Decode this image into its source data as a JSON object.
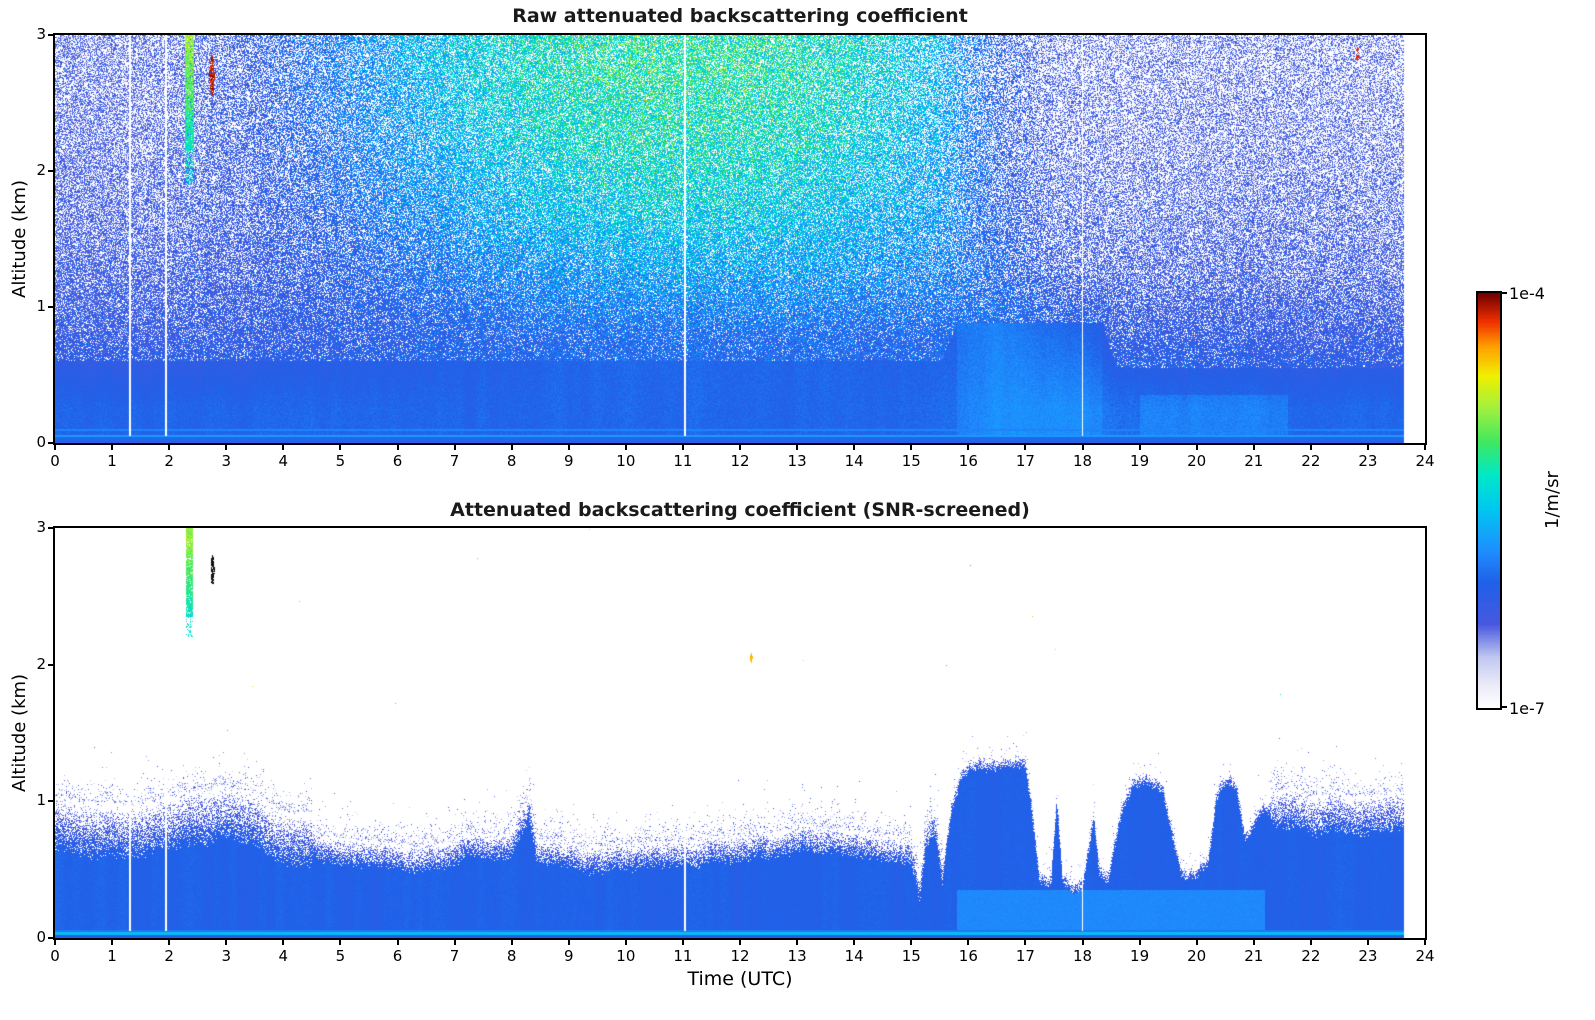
{
  "colorbar": {
    "max_label": "1e-4",
    "min_label": "1e-7",
    "units_label": "1/m/sr",
    "scale": "log",
    "vmin": 1e-07,
    "vmax": 0.0001,
    "stops": [
      {
        "u": 0.0,
        "c": "#ffffff"
      },
      {
        "u": 0.06,
        "c": "#e8e8f8"
      },
      {
        "u": 0.12,
        "c": "#c0c8f0"
      },
      {
        "u": 0.2,
        "c": "#4858e0"
      },
      {
        "u": 0.3,
        "c": "#2060e8"
      },
      {
        "u": 0.38,
        "c": "#1e90ff"
      },
      {
        "u": 0.48,
        "c": "#00c8f0"
      },
      {
        "u": 0.56,
        "c": "#00e8c8"
      },
      {
        "u": 0.64,
        "c": "#40e860"
      },
      {
        "u": 0.72,
        "c": "#a0f040"
      },
      {
        "u": 0.8,
        "c": "#f0f000"
      },
      {
        "u": 0.87,
        "c": "#ffa000"
      },
      {
        "u": 0.93,
        "c": "#f03000"
      },
      {
        "u": 1.0,
        "c": "#700000"
      }
    ]
  },
  "chart_data": [
    {
      "type": "heatmap",
      "title": "Raw attenuated backscattering coefficient",
      "xlabel": "Time (UTC)",
      "ylabel": "Altitude (km)",
      "xlim": [
        0,
        24
      ],
      "ylim": [
        0,
        3
      ],
      "x_ticks": [
        0,
        1,
        2,
        3,
        4,
        5,
        6,
        7,
        8,
        9,
        10,
        11,
        12,
        13,
        14,
        15,
        16,
        17,
        18,
        19,
        20,
        21,
        22,
        23,
        24
      ],
      "y_ticks": [
        0,
        1,
        2,
        3
      ],
      "colorbar_range_labels": [
        "1e-7",
        "1e-4"
      ],
      "data_end_time_utc": 23.63,
      "gap_times_utc": [
        1.31,
        1.95,
        11.04,
        18.0
      ],
      "surface_solid_layer_top_km": 0.6,
      "bright_region": {
        "t_start": 15.8,
        "t_end": 18.35,
        "top_km": 0.88
      },
      "grid_t_centers": [
        0.5,
        1.5,
        2.5,
        3.5,
        4.5,
        5.5,
        6.5,
        7.5,
        8.5,
        9.5,
        10.5,
        11.5,
        12.5,
        13.5,
        14.5,
        15.5,
        16.5,
        17.5,
        18.5,
        19.5,
        20.5,
        21.5,
        22.5,
        23.5
      ],
      "grid_z_centers": [
        0.25,
        0.75,
        1.25,
        1.75,
        2.25,
        2.75
      ],
      "value_grid": [
        [
          0.31,
          0.31,
          0.31,
          0.31,
          0.31,
          0.31,
          0.31,
          0.31,
          0.31,
          0.31,
          0.31,
          0.31,
          0.31,
          0.31,
          0.31,
          0.32,
          0.35,
          0.35,
          0.33,
          0.32,
          0.32,
          0.31,
          0.31,
          0.31
        ],
        [
          0.24,
          0.24,
          0.25,
          0.25,
          0.26,
          0.27,
          0.28,
          0.29,
          0.3,
          0.31,
          0.31,
          0.31,
          0.31,
          0.31,
          0.3,
          0.3,
          0.33,
          0.3,
          0.26,
          0.25,
          0.25,
          0.24,
          0.24,
          0.24
        ],
        [
          0.22,
          0.22,
          0.23,
          0.24,
          0.26,
          0.29,
          0.32,
          0.35,
          0.38,
          0.4,
          0.41,
          0.41,
          0.41,
          0.4,
          0.38,
          0.36,
          0.3,
          0.24,
          0.23,
          0.22,
          0.22,
          0.22,
          0.22,
          0.22
        ],
        [
          0.21,
          0.21,
          0.22,
          0.24,
          0.28,
          0.33,
          0.38,
          0.43,
          0.46,
          0.48,
          0.5,
          0.5,
          0.49,
          0.47,
          0.44,
          0.4,
          0.28,
          0.22,
          0.21,
          0.21,
          0.21,
          0.21,
          0.21,
          0.21
        ],
        [
          0.2,
          0.2,
          0.22,
          0.25,
          0.3,
          0.36,
          0.42,
          0.47,
          0.51,
          0.54,
          0.55,
          0.55,
          0.54,
          0.52,
          0.48,
          0.42,
          0.28,
          0.21,
          0.2,
          0.2,
          0.2,
          0.2,
          0.2,
          0.2
        ],
        [
          0.2,
          0.2,
          0.22,
          0.26,
          0.32,
          0.38,
          0.45,
          0.5,
          0.54,
          0.57,
          0.58,
          0.58,
          0.57,
          0.54,
          0.5,
          0.44,
          0.28,
          0.21,
          0.2,
          0.2,
          0.2,
          0.2,
          0.2,
          0.2
        ]
      ],
      "fill_grid": [
        [
          1.0,
          1.0,
          1.0,
          1.0,
          1.0,
          1.0,
          1.0,
          1.0,
          1.0,
          1.0,
          1.0,
          1.0,
          1.0,
          1.0,
          1.0,
          1.0,
          1.0,
          1.0,
          1.0,
          1.0,
          1.0,
          1.0,
          1.0,
          1.0
        ],
        [
          0.85,
          0.85,
          0.85,
          0.85,
          0.85,
          0.85,
          0.88,
          0.9,
          0.9,
          0.9,
          0.9,
          0.9,
          0.9,
          0.9,
          0.9,
          0.9,
          0.95,
          0.9,
          0.85,
          0.85,
          0.85,
          0.85,
          0.85,
          0.85
        ],
        [
          0.7,
          0.68,
          0.68,
          0.7,
          0.72,
          0.75,
          0.78,
          0.8,
          0.82,
          0.82,
          0.82,
          0.82,
          0.82,
          0.8,
          0.78,
          0.75,
          0.7,
          0.6,
          0.58,
          0.6,
          0.62,
          0.62,
          0.6,
          0.6
        ],
        [
          0.6,
          0.58,
          0.58,
          0.6,
          0.65,
          0.7,
          0.74,
          0.77,
          0.78,
          0.78,
          0.78,
          0.78,
          0.78,
          0.76,
          0.73,
          0.68,
          0.6,
          0.5,
          0.48,
          0.5,
          0.52,
          0.52,
          0.5,
          0.5
        ],
        [
          0.55,
          0.52,
          0.52,
          0.55,
          0.6,
          0.66,
          0.7,
          0.73,
          0.75,
          0.75,
          0.75,
          0.75,
          0.74,
          0.72,
          0.68,
          0.62,
          0.52,
          0.44,
          0.42,
          0.44,
          0.46,
          0.46,
          0.44,
          0.44
        ],
        [
          0.5,
          0.48,
          0.5,
          0.55,
          0.6,
          0.65,
          0.7,
          0.72,
          0.74,
          0.74,
          0.74,
          0.73,
          0.72,
          0.7,
          0.66,
          0.6,
          0.48,
          0.4,
          0.38,
          0.4,
          0.42,
          0.42,
          0.4,
          0.4
        ]
      ],
      "features": {
        "plume": {
          "t_start": 2.27,
          "t_end": 2.43,
          "z_base": 1.9,
          "z_solid": 2.15,
          "z_top": 3.0,
          "color": "cyan-green"
        },
        "strong_echo": {
          "t": 2.75,
          "z": 2.7,
          "rt": 0.045,
          "rz": 0.15,
          "color": "dark-red"
        },
        "small_echo": {
          "t": 22.82,
          "z": 2.86,
          "rt": 0.03,
          "rz": 0.05,
          "color": "dark-red"
        }
      }
    },
    {
      "type": "heatmap",
      "title": "Attenuated backscattering coefficient (SNR-screened)",
      "xlabel": "Time (UTC)",
      "ylabel": "Altitude (km)",
      "xlim": [
        0,
        24
      ],
      "ylim": [
        0,
        3
      ],
      "x_ticks": [
        0,
        1,
        2,
        3,
        4,
        5,
        6,
        7,
        8,
        9,
        10,
        11,
        12,
        13,
        14,
        15,
        16,
        17,
        18,
        19,
        20,
        21,
        22,
        23,
        24
      ],
      "y_ticks": [
        0,
        1,
        2,
        3
      ],
      "colorbar_range_labels": [
        "1e-7",
        "1e-4"
      ],
      "data_end_time_utc": 23.63,
      "gap_times_utc": [
        1.31,
        1.95,
        11.04,
        18.0
      ],
      "layer_top_km": {
        "t": [
          0.0,
          0.5,
          1.0,
          1.5,
          2.0,
          2.5,
          3.0,
          3.3,
          3.7,
          4.0,
          4.5,
          5.0,
          5.5,
          6.0,
          6.5,
          7.0,
          7.5,
          8.0,
          8.25,
          8.32,
          8.45,
          9.0,
          9.5,
          10.0,
          10.5,
          11.0,
          11.5,
          12.0,
          12.5,
          13.0,
          13.5,
          14.0,
          14.5,
          15.0,
          15.15,
          15.25,
          15.4,
          15.55,
          15.7,
          15.9,
          16.2,
          16.6,
          17.0,
          17.1,
          17.25,
          17.45,
          17.55,
          17.65,
          17.8,
          18.0,
          18.2,
          18.3,
          18.45,
          18.7,
          18.9,
          19.1,
          19.4,
          19.6,
          19.75,
          19.95,
          20.2,
          20.35,
          20.5,
          20.7,
          20.85,
          21.1,
          21.5,
          22.0,
          22.5,
          23.0,
          23.4,
          23.63
        ],
        "top": [
          0.85,
          0.8,
          0.76,
          0.79,
          0.84,
          0.9,
          0.93,
          0.88,
          0.8,
          0.74,
          0.68,
          0.63,
          0.6,
          0.58,
          0.6,
          0.63,
          0.66,
          0.68,
          0.9,
          0.93,
          0.63,
          0.58,
          0.57,
          0.58,
          0.61,
          0.63,
          0.64,
          0.67,
          0.69,
          0.73,
          0.71,
          0.69,
          0.66,
          0.62,
          0.38,
          0.72,
          0.85,
          0.45,
          0.95,
          1.22,
          1.28,
          1.26,
          1.3,
          1.0,
          0.42,
          0.4,
          1.02,
          0.45,
          0.38,
          0.4,
          0.9,
          0.5,
          0.42,
          0.95,
          1.12,
          1.18,
          1.1,
          0.7,
          0.45,
          0.42,
          0.55,
          1.05,
          1.15,
          1.1,
          0.7,
          0.92,
          0.95,
          0.9,
          0.93,
          0.88,
          0.92,
          0.9
        ]
      },
      "edge_fuzz_km": {
        "t_breaks": [
          0,
          4.5,
          15.55,
          21.3,
          24
        ],
        "widths": [
          0.2,
          0.1,
          0.05,
          0.15
        ]
      },
      "bright_low_band": {
        "t_start": 15.8,
        "t_end": 21.2,
        "z_top": 0.35
      },
      "features": {
        "cloud_plume": {
          "t_start": 2.29,
          "t_end": 2.42,
          "z_base": 2.2,
          "z_solid": 2.35,
          "z_top": 3.0,
          "color": "cyan-green"
        },
        "dark_spot": {
          "t": 2.76,
          "z": 2.69,
          "rt": 0.035,
          "rz": 0.11,
          "color": "black"
        },
        "isolated_dot": {
          "t": 12.2,
          "z": 2.05,
          "rt": 0.02,
          "rz": 0.035,
          "color": "orange"
        }
      }
    }
  ]
}
